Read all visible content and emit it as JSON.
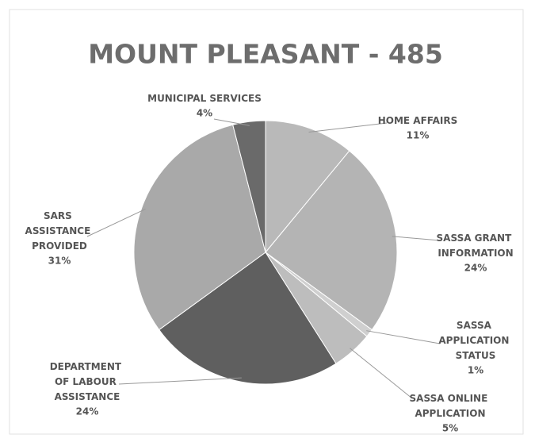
{
  "chart_data": {
    "type": "pie",
    "title": "MOUNT PLEASANT - 485",
    "categories": [
      "HOME AFFAIRS",
      "SASSA GRANT INFORMATION",
      "SASSA APPLICATION STATUS",
      "SASSA ONLINE APPLICATION",
      "DEPARTMENT OF LABOUR ASSISTANCE",
      "SARS ASSISTANCE PROVIDED",
      "MUNICIPAL SERVICES"
    ],
    "values": [
      11,
      24,
      1,
      5,
      24,
      31,
      4
    ],
    "value_labels": [
      "11%",
      "24%",
      "1%",
      "5%",
      "24%",
      "31%",
      "4%"
    ],
    "colors": [
      "#b9b9b9",
      "#b4b4b4",
      "#cfcfcf",
      "#bdbdbd",
      "#5f5f5f",
      "#a9a9a9",
      "#6a6a6a"
    ]
  }
}
